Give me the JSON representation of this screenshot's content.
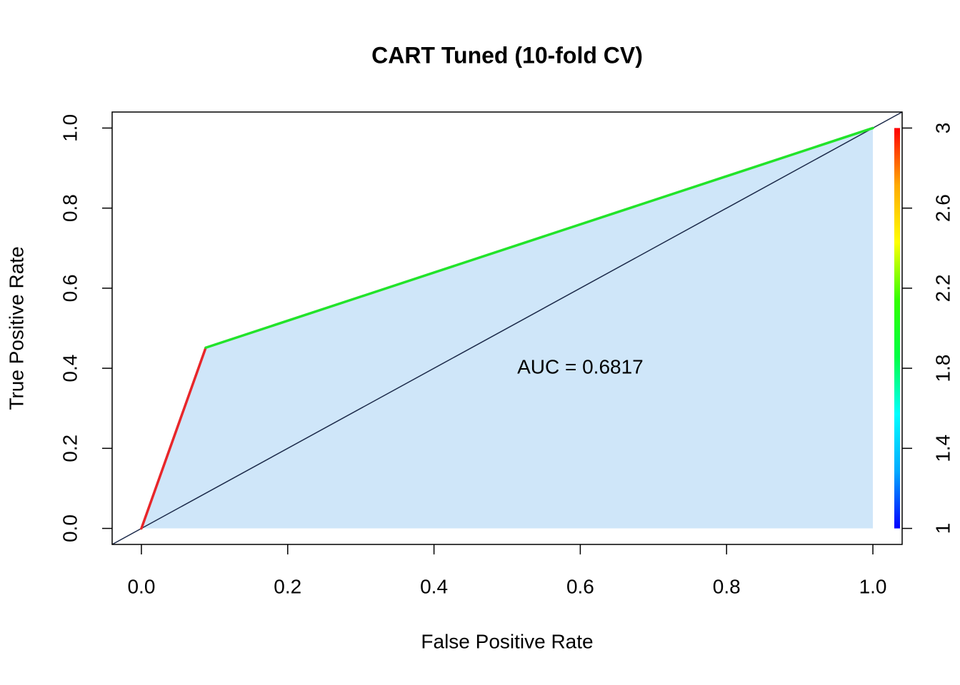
{
  "chart_data": {
    "type": "roc",
    "title": "CART Tuned (10-fold CV)",
    "xlabel": "False Positive Rate",
    "ylabel": "True Positive Rate",
    "x": [
      0,
      0.088,
      1
    ],
    "values": [
      0,
      0.4514,
      1
    ],
    "segment_colors": [
      "#e8262a",
      "#22e32a"
    ],
    "fill_color": "#cfe6f9",
    "diagonal": true,
    "diagonal_color": "#1c2a4a",
    "xlim": [
      -0.04,
      1.04
    ],
    "ylim": [
      -0.04,
      1.04
    ],
    "xticks": [
      {
        "value": 0,
        "label": "0.0"
      },
      0.2,
      0.4,
      0.6,
      0.8,
      {
        "value": 1,
        "label": "1.0"
      }
    ],
    "yticks": [
      {
        "value": 0,
        "label": "0.0"
      },
      0.2,
      0.4,
      0.6,
      0.8,
      {
        "value": 1,
        "label": "1.0"
      }
    ],
    "annotation": {
      "text": "AUC = 0.6817",
      "x": 0.6,
      "y": 0.4
    },
    "colorbar": {
      "lim": [
        1,
        3
      ],
      "ticks": [
        1,
        1.4,
        1.8,
        2.2,
        2.6,
        3
      ],
      "colors": [
        "#0000ff",
        "#00aaff",
        "#00ffff",
        "#00ff44",
        "#33ff00",
        "#ffff00",
        "#ffaa00",
        "#ff0000"
      ]
    }
  }
}
